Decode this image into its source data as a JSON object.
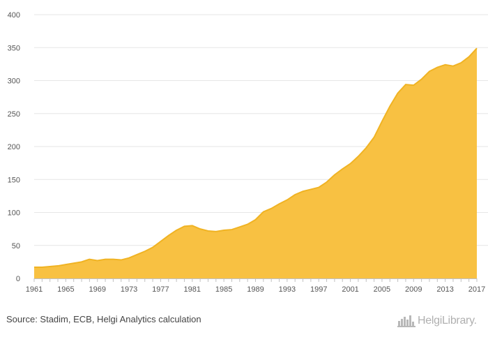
{
  "chart_data": {
    "type": "area",
    "x": [
      1961,
      1962,
      1963,
      1964,
      1965,
      1966,
      1967,
      1968,
      1969,
      1970,
      1971,
      1972,
      1973,
      1974,
      1975,
      1976,
      1977,
      1978,
      1979,
      1980,
      1981,
      1982,
      1983,
      1984,
      1985,
      1986,
      1987,
      1988,
      1989,
      1990,
      1991,
      1992,
      1993,
      1994,
      1995,
      1996,
      1997,
      1998,
      1999,
      2000,
      2001,
      2002,
      2003,
      2004,
      2005,
      2006,
      2007,
      2008,
      2009,
      2010,
      2011,
      2012,
      2013,
      2014,
      2015,
      2016,
      2017
    ],
    "values": [
      17,
      17,
      18,
      19,
      21,
      23,
      25,
      29,
      27,
      29,
      29,
      28,
      31,
      36,
      41,
      47,
      56,
      65,
      73,
      79,
      80,
      75,
      72,
      71,
      73,
      74,
      78,
      82,
      89,
      101,
      106,
      113,
      119,
      127,
      132,
      135,
      138,
      146,
      157,
      166,
      174,
      185,
      198,
      214,
      238,
      261,
      281,
      294,
      293,
      302,
      314,
      320,
      324,
      322,
      327,
      336,
      349
    ],
    "x_tick_labels": [
      "1961",
      "1965",
      "1969",
      "1973",
      "1977",
      "1981",
      "1985",
      "1989",
      "1993",
      "1997",
      "2001",
      "2005",
      "2009",
      "2013",
      "2017"
    ],
    "y_tick_labels": [
      "0",
      "50",
      "100",
      "150",
      "200",
      "250",
      "300",
      "350",
      "400"
    ],
    "ylim": [
      0,
      400
    ],
    "xlim": [
      1961,
      2017
    ],
    "grid": true,
    "legend": "none",
    "fill_color": "#f8c142",
    "line_color": "#f0b323"
  },
  "footer": {
    "source": "Source: Stadim, ECB, Helgi Analytics calculation",
    "brand": "HelgiLibrary."
  }
}
